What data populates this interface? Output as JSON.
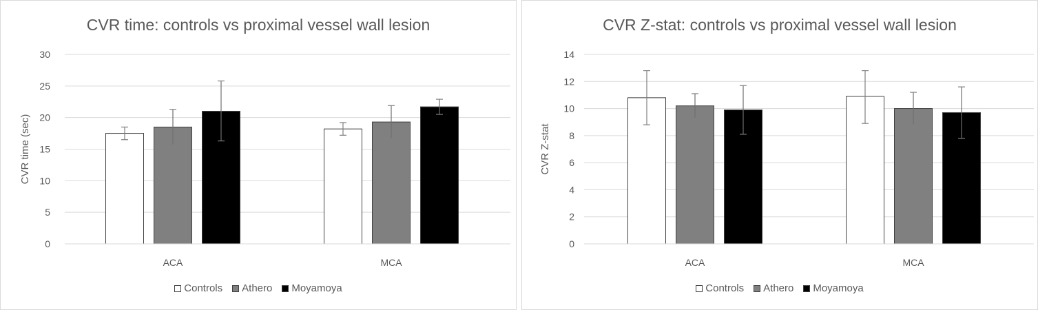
{
  "chart_data": [
    {
      "type": "bar",
      "title": "CVR time: controls vs proximal vessel wall lesion",
      "xlabel": "",
      "ylabel": "CVR time (sec)",
      "ylim": [
        0,
        30
      ],
      "yticks": [
        "0",
        "5",
        "10",
        "15",
        "20",
        "25",
        "30"
      ],
      "categories": [
        "ACA",
        "MCA"
      ],
      "grid": true,
      "legend": "bottom",
      "series": [
        {
          "name": "Controls",
          "color": "#ffffff",
          "values": [
            17.5,
            18.2
          ],
          "err_high": [
            18.5,
            19.2
          ],
          "err_low": [
            16.5,
            17.2
          ]
        },
        {
          "name": "Athero",
          "color": "#808080",
          "values": [
            18.5,
            19.3
          ],
          "err_high": [
            21.3,
            21.9
          ],
          "err_low": [
            15.7,
            16.7
          ]
        },
        {
          "name": "Moyamoya",
          "color": "#000000",
          "values": [
            21.0,
            21.7
          ],
          "err_high": [
            25.8,
            22.9
          ],
          "err_low": [
            16.3,
            20.5
          ]
        }
      ]
    },
    {
      "type": "bar",
      "title": "CVR Z-stat: controls vs proximal vessel wall lesion",
      "xlabel": "",
      "ylabel": "CVR Z-stat",
      "ylim": [
        0,
        14
      ],
      "yticks": [
        "0",
        "2",
        "4",
        "6",
        "8",
        "10",
        "12",
        "14"
      ],
      "categories": [
        "ACA",
        "MCA"
      ],
      "grid": true,
      "legend": "bottom",
      "series": [
        {
          "name": "Controls",
          "color": "#ffffff",
          "values": [
            10.8,
            10.9
          ],
          "err_high": [
            12.8,
            12.8
          ],
          "err_low": [
            8.8,
            8.9
          ]
        },
        {
          "name": "Athero",
          "color": "#808080",
          "values": [
            10.2,
            10.0
          ],
          "err_high": [
            11.1,
            11.2
          ],
          "err_low": [
            9.3,
            8.8
          ]
        },
        {
          "name": "Moyamoya",
          "color": "#000000",
          "values": [
            9.9,
            9.7
          ],
          "err_high": [
            11.7,
            11.6
          ],
          "err_low": [
            8.1,
            7.8
          ]
        }
      ]
    }
  ]
}
